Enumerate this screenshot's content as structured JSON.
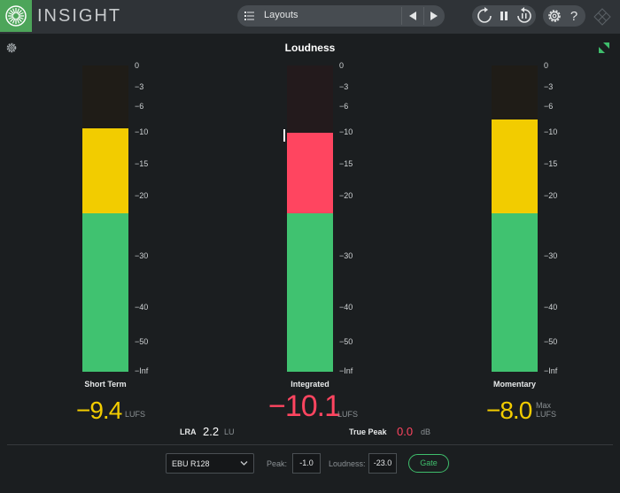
{
  "app": {
    "title": "INSIGHT",
    "logo_icon": "insight-logo-icon",
    "accent": "#4da55a"
  },
  "toolbar": {
    "layouts_label": "Layouts",
    "prev_icon": "triangle-left-icon",
    "next_icon": "triangle-right-icon",
    "icons": [
      "loop-icon",
      "pause-icon",
      "reset-icon",
      "gear-icon",
      "help-icon"
    ]
  },
  "panel": {
    "title": "Loudness"
  },
  "scale": [
    "0",
    "−3",
    "−6",
    "−10",
    "−15",
    "−20",
    "−30",
    "−40",
    "−50",
    "−Inf"
  ],
  "meters": [
    {
      "label": "Short Term",
      "value": "−9.4",
      "unit": "LUFS",
      "level_db": -9.4,
      "color": "#f2cc00",
      "extra": ""
    },
    {
      "label": "Integrated",
      "value": "−10.1",
      "unit": "LUFS",
      "level_db": -10.1,
      "color": "#ff4560",
      "extra": ""
    },
    {
      "label": "Momentary",
      "value": "−8.0",
      "unit": "LUFS",
      "level_db": -8.0,
      "color": "#f2cc00",
      "extra": "Max"
    }
  ],
  "colors": {
    "green": "#40c270",
    "yellow": "#f2cc00",
    "red": "#ff4560",
    "bar_bg": "#1f1c17",
    "bar_bg_red": "#231a1c"
  },
  "lra": {
    "label": "LRA",
    "value": "2.2",
    "unit": "LU"
  },
  "true_peak": {
    "label": "True Peak",
    "value": "0.0",
    "unit": "dB"
  },
  "footer": {
    "standard": "EBU R128",
    "peak_label": "Peak:",
    "peak_value": "-1.0",
    "loudness_label": "Loudness:",
    "loudness_value": "-23.0",
    "gate_label": "Gate"
  }
}
